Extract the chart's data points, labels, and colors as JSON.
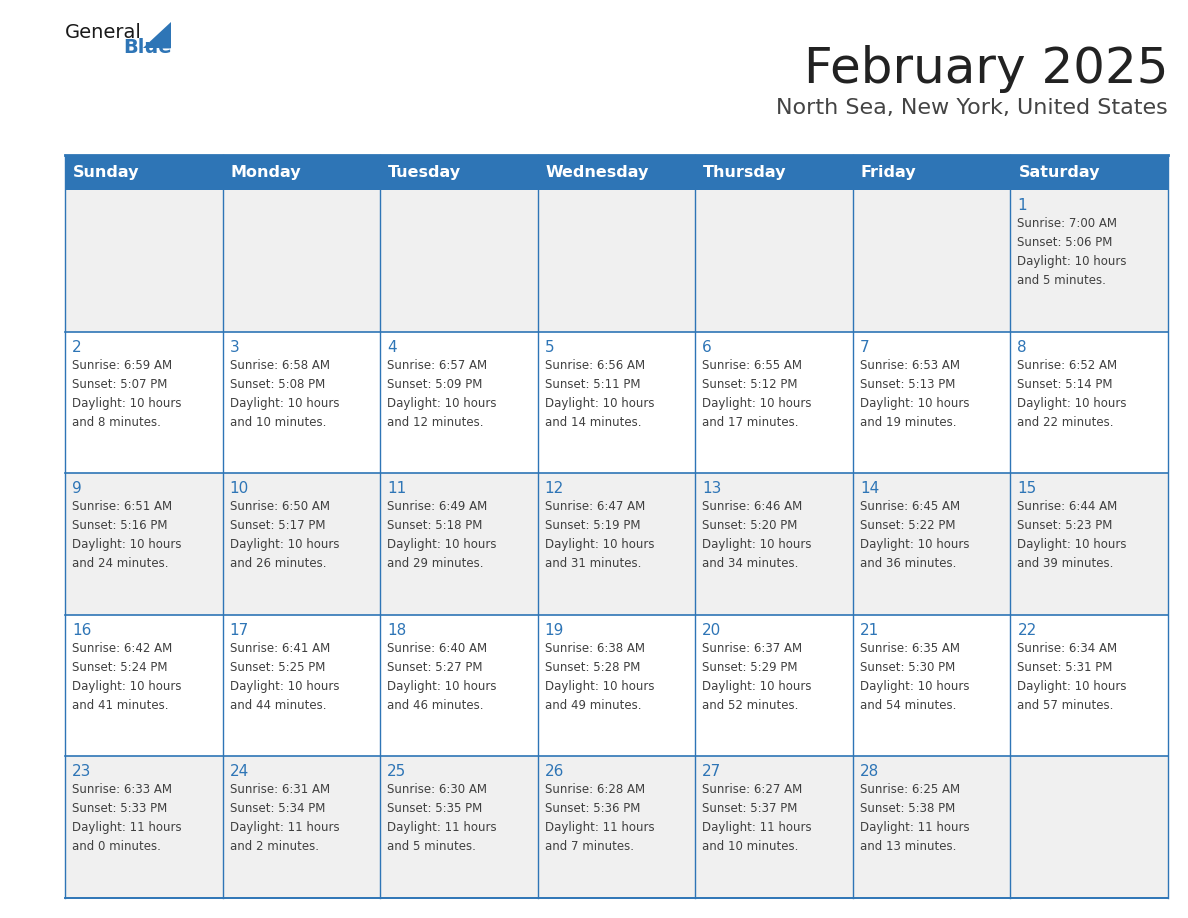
{
  "title": "February 2025",
  "subtitle": "North Sea, New York, United States",
  "header_bg": "#2E75B6",
  "header_text_color": "#FFFFFF",
  "cell_bg": "#FFFFFF",
  "cell_alt_bg": "#F0F0F0",
  "border_color": "#2E75B6",
  "title_color": "#222222",
  "subtitle_color": "#444444",
  "day_number_color": "#2E75B6",
  "cell_text_color": "#404040",
  "days_of_week": [
    "Sunday",
    "Monday",
    "Tuesday",
    "Wednesday",
    "Thursday",
    "Friday",
    "Saturday"
  ],
  "logo_general_color": "#1a1a1a",
  "logo_blue_color": "#2E75B6",
  "calendar": [
    [
      null,
      null,
      null,
      null,
      null,
      null,
      {
        "day": 1,
        "sunrise": "7:00 AM",
        "sunset": "5:06 PM",
        "daylight_hours": 10,
        "daylight_minutes": 5
      }
    ],
    [
      {
        "day": 2,
        "sunrise": "6:59 AM",
        "sunset": "5:07 PM",
        "daylight_hours": 10,
        "daylight_minutes": 8
      },
      {
        "day": 3,
        "sunrise": "6:58 AM",
        "sunset": "5:08 PM",
        "daylight_hours": 10,
        "daylight_minutes": 10
      },
      {
        "day": 4,
        "sunrise": "6:57 AM",
        "sunset": "5:09 PM",
        "daylight_hours": 10,
        "daylight_minutes": 12
      },
      {
        "day": 5,
        "sunrise": "6:56 AM",
        "sunset": "5:11 PM",
        "daylight_hours": 10,
        "daylight_minutes": 14
      },
      {
        "day": 6,
        "sunrise": "6:55 AM",
        "sunset": "5:12 PM",
        "daylight_hours": 10,
        "daylight_minutes": 17
      },
      {
        "day": 7,
        "sunrise": "6:53 AM",
        "sunset": "5:13 PM",
        "daylight_hours": 10,
        "daylight_minutes": 19
      },
      {
        "day": 8,
        "sunrise": "6:52 AM",
        "sunset": "5:14 PM",
        "daylight_hours": 10,
        "daylight_minutes": 22
      }
    ],
    [
      {
        "day": 9,
        "sunrise": "6:51 AM",
        "sunset": "5:16 PM",
        "daylight_hours": 10,
        "daylight_minutes": 24
      },
      {
        "day": 10,
        "sunrise": "6:50 AM",
        "sunset": "5:17 PM",
        "daylight_hours": 10,
        "daylight_minutes": 26
      },
      {
        "day": 11,
        "sunrise": "6:49 AM",
        "sunset": "5:18 PM",
        "daylight_hours": 10,
        "daylight_minutes": 29
      },
      {
        "day": 12,
        "sunrise": "6:47 AM",
        "sunset": "5:19 PM",
        "daylight_hours": 10,
        "daylight_minutes": 31
      },
      {
        "day": 13,
        "sunrise": "6:46 AM",
        "sunset": "5:20 PM",
        "daylight_hours": 10,
        "daylight_minutes": 34
      },
      {
        "day": 14,
        "sunrise": "6:45 AM",
        "sunset": "5:22 PM",
        "daylight_hours": 10,
        "daylight_minutes": 36
      },
      {
        "day": 15,
        "sunrise": "6:44 AM",
        "sunset": "5:23 PM",
        "daylight_hours": 10,
        "daylight_minutes": 39
      }
    ],
    [
      {
        "day": 16,
        "sunrise": "6:42 AM",
        "sunset": "5:24 PM",
        "daylight_hours": 10,
        "daylight_minutes": 41
      },
      {
        "day": 17,
        "sunrise": "6:41 AM",
        "sunset": "5:25 PM",
        "daylight_hours": 10,
        "daylight_minutes": 44
      },
      {
        "day": 18,
        "sunrise": "6:40 AM",
        "sunset": "5:27 PM",
        "daylight_hours": 10,
        "daylight_minutes": 46
      },
      {
        "day": 19,
        "sunrise": "6:38 AM",
        "sunset": "5:28 PM",
        "daylight_hours": 10,
        "daylight_minutes": 49
      },
      {
        "day": 20,
        "sunrise": "6:37 AM",
        "sunset": "5:29 PM",
        "daylight_hours": 10,
        "daylight_minutes": 52
      },
      {
        "day": 21,
        "sunrise": "6:35 AM",
        "sunset": "5:30 PM",
        "daylight_hours": 10,
        "daylight_minutes": 54
      },
      {
        "day": 22,
        "sunrise": "6:34 AM",
        "sunset": "5:31 PM",
        "daylight_hours": 10,
        "daylight_minutes": 57
      }
    ],
    [
      {
        "day": 23,
        "sunrise": "6:33 AM",
        "sunset": "5:33 PM",
        "daylight_hours": 11,
        "daylight_minutes": 0
      },
      {
        "day": 24,
        "sunrise": "6:31 AM",
        "sunset": "5:34 PM",
        "daylight_hours": 11,
        "daylight_minutes": 2
      },
      {
        "day": 25,
        "sunrise": "6:30 AM",
        "sunset": "5:35 PM",
        "daylight_hours": 11,
        "daylight_minutes": 5
      },
      {
        "day": 26,
        "sunrise": "6:28 AM",
        "sunset": "5:36 PM",
        "daylight_hours": 11,
        "daylight_minutes": 7
      },
      {
        "day": 27,
        "sunrise": "6:27 AM",
        "sunset": "5:37 PM",
        "daylight_hours": 11,
        "daylight_minutes": 10
      },
      {
        "day": 28,
        "sunrise": "6:25 AM",
        "sunset": "5:38 PM",
        "daylight_hours": 11,
        "daylight_minutes": 13
      },
      null
    ]
  ]
}
